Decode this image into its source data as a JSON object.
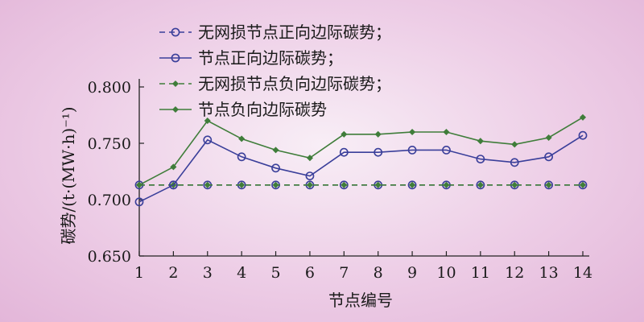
{
  "chart_data": {
    "type": "line",
    "xlabel": "节点编号",
    "ylabel": "碳势/(t·(MW·h)⁻¹)",
    "x": [
      1,
      2,
      3,
      4,
      5,
      6,
      7,
      8,
      9,
      10,
      11,
      12,
      13,
      14
    ],
    "xlim": [
      1,
      14
    ],
    "ylim": [
      0.65,
      0.8
    ],
    "yticks": [
      "0.650",
      "0.700",
      "0.750",
      "0.800"
    ],
    "grid": false,
    "legend_position": "top-left",
    "series": [
      {
        "name": "无网损节点正向边际碳势；",
        "color": "#3a3f9a",
        "line_style": "dashed",
        "marker": "circle",
        "values": [
          0.713,
          0.713,
          0.713,
          0.713,
          0.713,
          0.713,
          0.713,
          0.713,
          0.713,
          0.713,
          0.713,
          0.713,
          0.713,
          0.713
        ]
      },
      {
        "name": "节点正向边际碳势；",
        "color": "#3a3f9a",
        "line_style": "solid",
        "marker": "circle",
        "values": [
          0.698,
          0.713,
          0.753,
          0.738,
          0.728,
          0.721,
          0.742,
          0.742,
          0.744,
          0.744,
          0.736,
          0.733,
          0.738,
          0.757
        ]
      },
      {
        "name": "无网损节点负向边际碳势；",
        "color": "#3f7d3a",
        "line_style": "dashed",
        "marker": "diamond",
        "values": [
          0.713,
          0.713,
          0.713,
          0.713,
          0.713,
          0.713,
          0.713,
          0.713,
          0.713,
          0.713,
          0.713,
          0.713,
          0.713,
          0.713
        ]
      },
      {
        "name": "节点负向边际碳势",
        "color": "#3f7d3a",
        "line_style": "solid",
        "marker": "diamond",
        "values": [
          0.713,
          0.729,
          0.77,
          0.754,
          0.744,
          0.737,
          0.758,
          0.758,
          0.76,
          0.76,
          0.752,
          0.749,
          0.755,
          0.773
        ]
      }
    ]
  }
}
